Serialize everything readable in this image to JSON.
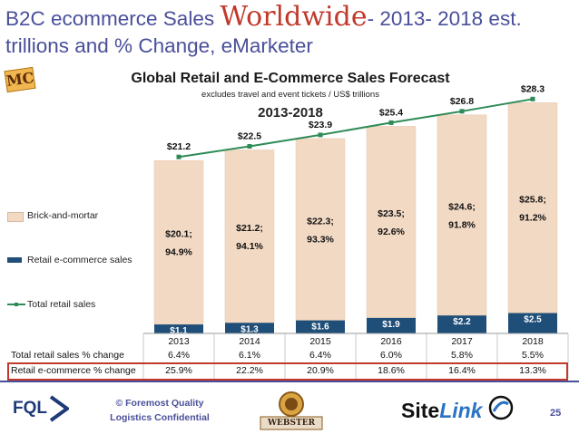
{
  "slide": {
    "title_part1": "B2C ecommerce Sales ",
    "title_highlight": "Worldwide",
    "title_part2": "- 2013- 2018 est. trillions and % Change, eMarketer",
    "badge": "MC",
    "page_number": "25"
  },
  "footer": {
    "company_logo": "FQL",
    "confidential_line1": "© Foremost Quality",
    "confidential_line2": "Logistics Confidential",
    "partner_logo": "WEBSTER",
    "sitelink_part1": "Site",
    "sitelink_part2": "Link"
  },
  "colors": {
    "title": "#4a4f9a",
    "title_highlight": "#c0392b",
    "brick_and_mortar": "#f2d9c4",
    "ecommerce": "#1f4e79",
    "total_line": "#2e8b57",
    "highlight_box": "#c0392b"
  },
  "chart_data": {
    "type": "bar",
    "title": "Global Retail and E-Commerce Sales Forecast",
    "subtitle": "excludes travel and event tickets / US$ trillions",
    "period": "2013-2018",
    "categories": [
      "2013",
      "2014",
      "2015",
      "2016",
      "2017",
      "2018"
    ],
    "series": [
      {
        "name": "Brick-and-mortar",
        "values": [
          20.1,
          21.2,
          22.3,
          23.5,
          24.6,
          25.8
        ],
        "labels": [
          "$20.1;",
          "$21.2;",
          "$22.3;",
          "$23.5;",
          "$24.6;",
          "$25.8;"
        ],
        "share_labels": [
          "94.9%",
          "94.1%",
          "93.3%",
          "92.6%",
          "91.8%",
          "91.2%"
        ]
      },
      {
        "name": "Retail e-commerce sales",
        "values": [
          1.1,
          1.3,
          1.6,
          1.9,
          2.2,
          2.5
        ],
        "labels": [
          "$1.1",
          "$1.3",
          "$1.6",
          "$1.9",
          "$2.2",
          "$2.5"
        ]
      },
      {
        "name": "Total retail sales",
        "values": [
          21.2,
          22.5,
          23.9,
          25.4,
          26.8,
          28.3
        ],
        "labels": [
          "$21.2",
          "$22.5",
          "$23.9",
          "$25.4",
          "$26.8",
          "$28.3"
        ]
      }
    ],
    "ylim": [
      0,
      30
    ],
    "legend_position": "left",
    "table": {
      "rows": [
        {
          "label": "Total retail sales % change",
          "values": [
            "6.4%",
            "6.1%",
            "6.4%",
            "6.0%",
            "5.8%",
            "5.5%"
          ]
        },
        {
          "label": "Retail e-commerce % change",
          "values": [
            "25.9%",
            "22.2%",
            "20.9%",
            "18.6%",
            "16.4%",
            "13.3%"
          ]
        }
      ]
    }
  }
}
